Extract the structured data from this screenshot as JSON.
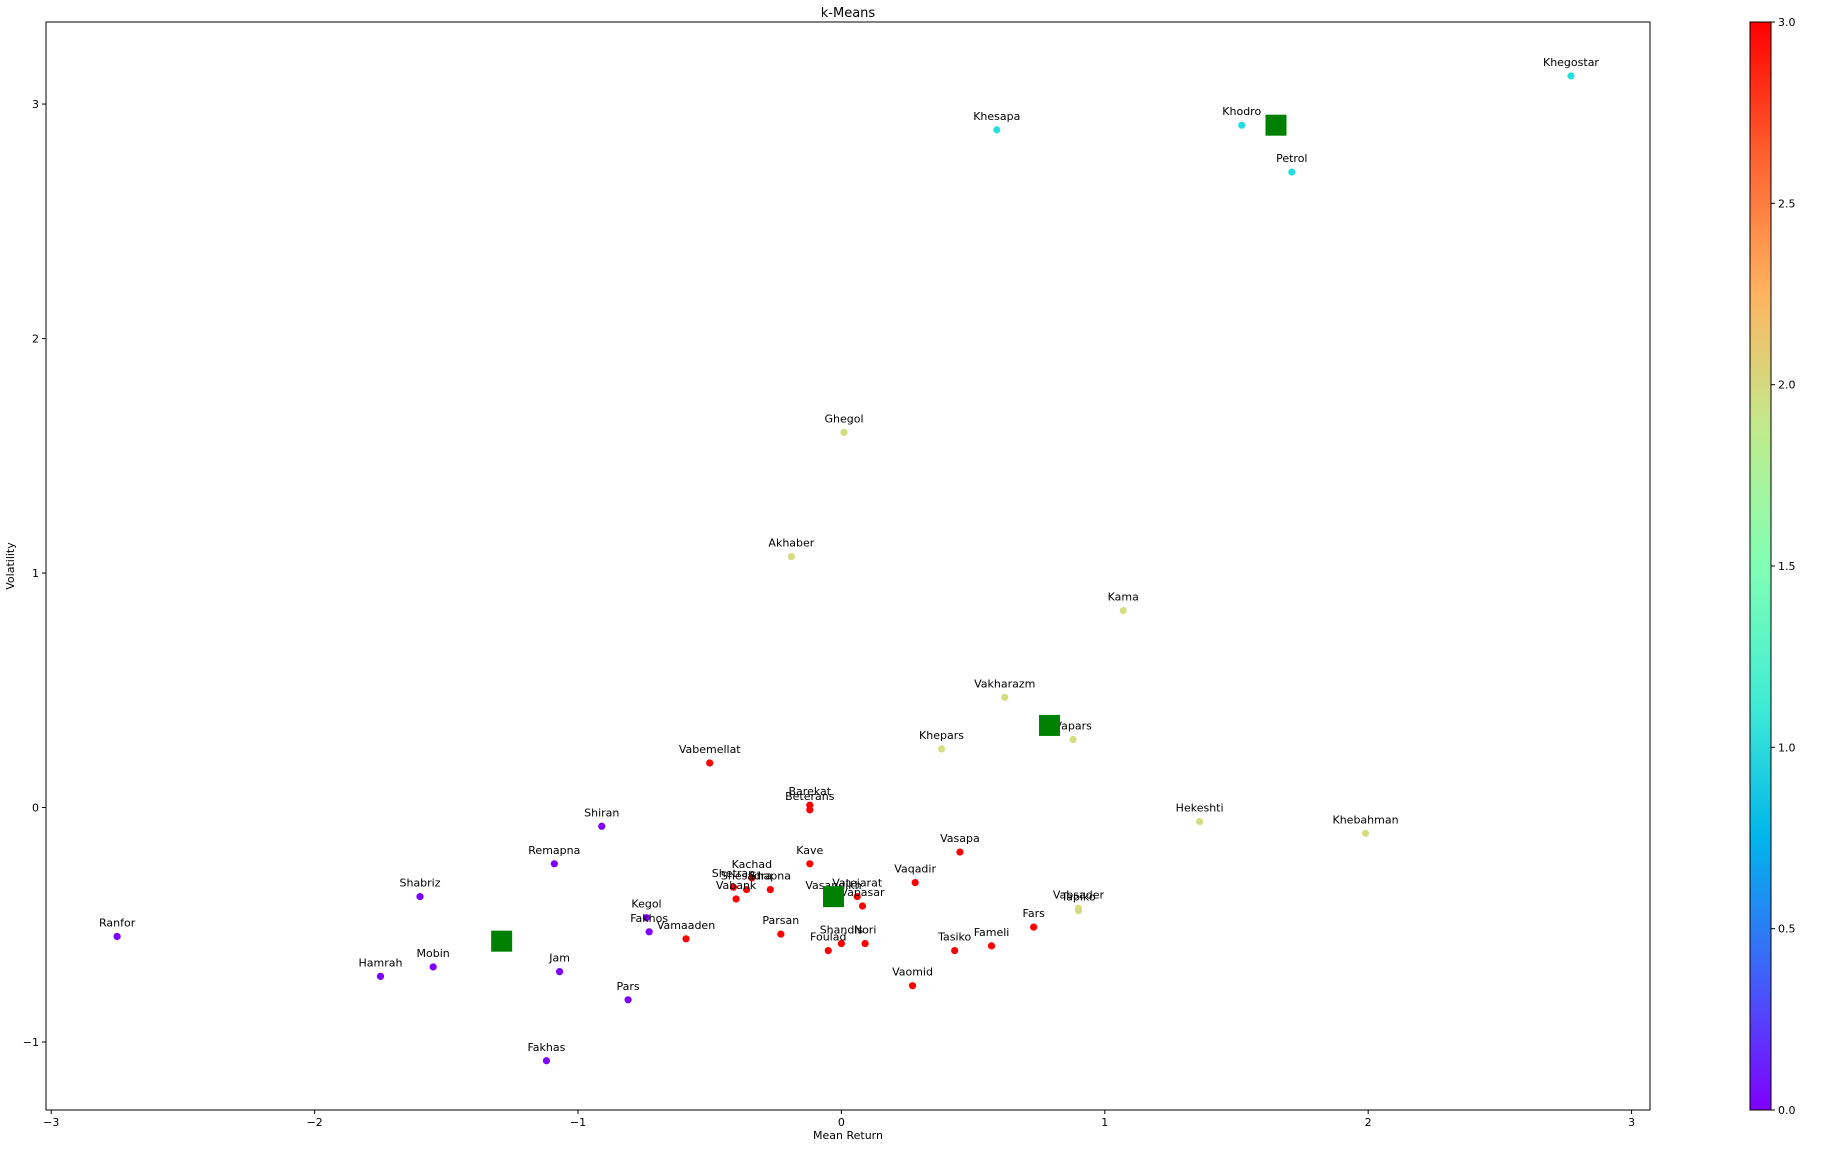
{
  "chart_data": {
    "type": "scatter",
    "title": "k-Means",
    "xlabel": "Mean Return",
    "ylabel": "Volatility",
    "xlim": [
      -3.02,
      3.07
    ],
    "ylim": [
      -1.29,
      3.35
    ],
    "x_ticks": [
      -3,
      -2,
      -1,
      0,
      1,
      2,
      3
    ],
    "x_tick_labels": [
      "−3",
      "−2",
      "−1",
      "0",
      "1",
      "2",
      "3"
    ],
    "y_ticks": [
      -1,
      0,
      1,
      2,
      3
    ],
    "y_tick_labels": [
      "−1",
      "0",
      "1",
      "2",
      "3"
    ],
    "grid": false,
    "colormap": "rainbow",
    "colorbar": {
      "range": [
        0,
        3
      ],
      "ticks": [
        0,
        0.5,
        1,
        1.5,
        2,
        2.5,
        3
      ],
      "tick_labels": [
        "0.0",
        "0.5",
        "1.0",
        "1.5",
        "2.0",
        "2.5",
        "3.0"
      ]
    },
    "cluster_colors": [
      "#8000ff",
      "#2adddd",
      "#d4dd80",
      "#ff0000"
    ],
    "centroid_color": "#008000",
    "points": [
      {
        "label": "Ranfor",
        "x": -2.75,
        "y": -0.55,
        "cluster": 0
      },
      {
        "label": "Hamrah",
        "x": -1.75,
        "y": -0.72,
        "cluster": 0
      },
      {
        "label": "Mobin",
        "x": -1.55,
        "y": -0.68,
        "cluster": 0
      },
      {
        "label": "Shabriz",
        "x": -1.6,
        "y": -0.38,
        "cluster": 0
      },
      {
        "label": "Remapna",
        "x": -1.09,
        "y": -0.24,
        "cluster": 0
      },
      {
        "label": "Shiran",
        "x": -0.91,
        "y": -0.08,
        "cluster": 0
      },
      {
        "label": "Jam",
        "x": -1.07,
        "y": -0.7,
        "cluster": 0
      },
      {
        "label": "Fakhas",
        "x": -1.12,
        "y": -1.08,
        "cluster": 0
      },
      {
        "label": "Pars",
        "x": -0.81,
        "y": -0.82,
        "cluster": 0
      },
      {
        "label": "Kegol",
        "x": -0.74,
        "y": -0.47,
        "cluster": 0
      },
      {
        "label": "Fakhos",
        "x": -0.73,
        "y": -0.53,
        "cluster": 0
      },
      {
        "label": "Khesapa",
        "x": 0.59,
        "y": 2.89,
        "cluster": 1
      },
      {
        "label": "Khodro",
        "x": 1.52,
        "y": 2.91,
        "cluster": 1
      },
      {
        "label": "Petrol",
        "x": 1.71,
        "y": 2.71,
        "cluster": 1
      },
      {
        "label": "Khegostar",
        "x": 2.77,
        "y": 3.12,
        "cluster": 1
      },
      {
        "label": "Ghegol",
        "x": 0.01,
        "y": 1.6,
        "cluster": 2
      },
      {
        "label": "Akhaber",
        "x": -0.19,
        "y": 1.07,
        "cluster": 2
      },
      {
        "label": "Kama",
        "x": 1.07,
        "y": 0.84,
        "cluster": 2
      },
      {
        "label": "Vakharazm",
        "x": 0.62,
        "y": 0.47,
        "cluster": 2
      },
      {
        "label": "Khepars",
        "x": 0.38,
        "y": 0.25,
        "cluster": 2
      },
      {
        "label": "Vapars",
        "x": 0.88,
        "y": 0.29,
        "cluster": 2
      },
      {
        "label": "Hekeshti",
        "x": 1.36,
        "y": -0.06,
        "cluster": 2
      },
      {
        "label": "Khebahman",
        "x": 1.99,
        "y": -0.11,
        "cluster": 2
      },
      {
        "label": "Vabsader",
        "x": 0.9,
        "y": -0.43,
        "cluster": 2
      },
      {
        "label": "Tapiko",
        "x": 0.9,
        "y": -0.44,
        "cluster": 2
      },
      {
        "label": "Vabemellat",
        "x": -0.5,
        "y": 0.19,
        "cluster": 3
      },
      {
        "label": "Barekat",
        "x": -0.12,
        "y": 0.01,
        "cluster": 3
      },
      {
        "label": "Beterans",
        "x": -0.12,
        "y": -0.01,
        "cluster": 3
      },
      {
        "label": "Kave",
        "x": -0.12,
        "y": -0.24,
        "cluster": 3
      },
      {
        "label": "Vasapa",
        "x": 0.45,
        "y": -0.19,
        "cluster": 3
      },
      {
        "label": "Vaqadir",
        "x": 0.28,
        "y": -0.32,
        "cluster": 3
      },
      {
        "label": "Kachad",
        "x": -0.34,
        "y": -0.3,
        "cluster": 3
      },
      {
        "label": "Shetran",
        "x": -0.41,
        "y": -0.34,
        "cluster": 3
      },
      {
        "label": "Shesadra",
        "x": -0.36,
        "y": -0.35,
        "cluster": 3
      },
      {
        "label": "Shapna",
        "x": -0.27,
        "y": -0.35,
        "cluster": 3
      },
      {
        "label": "Vatejarat",
        "x": 0.06,
        "y": -0.38,
        "cluster": 3
      },
      {
        "label": "Vasandikh",
        "x": -0.03,
        "y": -0.39,
        "cluster": 3
      },
      {
        "label": "Vabank",
        "x": -0.4,
        "y": -0.39,
        "cluster": 3
      },
      {
        "label": "Vapasar",
        "x": 0.08,
        "y": -0.42,
        "cluster": 3
      },
      {
        "label": "Vamaaden",
        "x": -0.59,
        "y": -0.56,
        "cluster": 3
      },
      {
        "label": "Parsan",
        "x": -0.23,
        "y": -0.54,
        "cluster": 3
      },
      {
        "label": "Foulad",
        "x": -0.05,
        "y": -0.61,
        "cluster": 3
      },
      {
        "label": "Shandis",
        "x": 0.0,
        "y": -0.58,
        "cluster": 3
      },
      {
        "label": "Nori",
        "x": 0.09,
        "y": -0.58,
        "cluster": 3
      },
      {
        "label": "Tasiko",
        "x": 0.43,
        "y": -0.61,
        "cluster": 3
      },
      {
        "label": "Fameli",
        "x": 0.57,
        "y": -0.59,
        "cluster": 3
      },
      {
        "label": "Fars",
        "x": 0.73,
        "y": -0.51,
        "cluster": 3
      },
      {
        "label": "Vaomid",
        "x": 0.27,
        "y": -0.76,
        "cluster": 3
      }
    ],
    "centroids": [
      {
        "x": -1.29,
        "y": -0.57
      },
      {
        "x": 1.65,
        "y": 2.91
      },
      {
        "x": 0.79,
        "y": 0.35
      },
      {
        "x": -0.03,
        "y": -0.38
      }
    ]
  }
}
